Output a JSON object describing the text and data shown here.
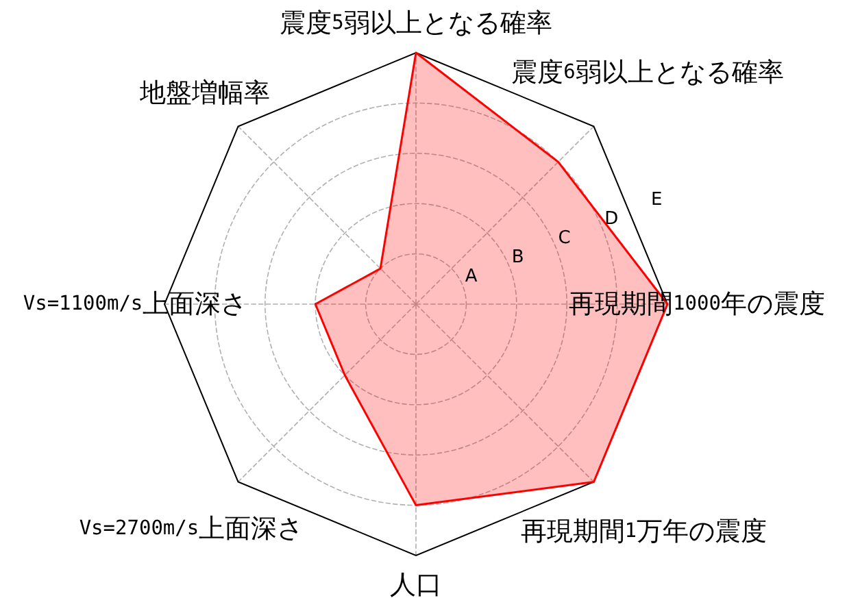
{
  "chart_data": {
    "type": "radar",
    "categories": [
      "震度5弱以上となる確率",
      "震度6弱以上となる確率",
      "再現期間1000年の震度",
      "再現期間1万年の震度",
      "人口",
      "Vs=2700m/s上面深さ",
      "Vs=1100m/s上面深さ",
      "地盤増幅率"
    ],
    "series": [
      {
        "color": "#ff0000",
        "values": [
          5,
          4,
          5,
          5,
          4,
          2,
          2,
          1
        ]
      }
    ],
    "ylim": [
      0,
      5
    ],
    "yticks": [
      {
        "value": 1,
        "label": "A"
      },
      {
        "value": 2,
        "label": "B"
      },
      {
        "value": 3,
        "label": "C"
      },
      {
        "value": 4,
        "label": "D"
      },
      {
        "value": 5,
        "label": "E"
      }
    ],
    "grid": true
  }
}
